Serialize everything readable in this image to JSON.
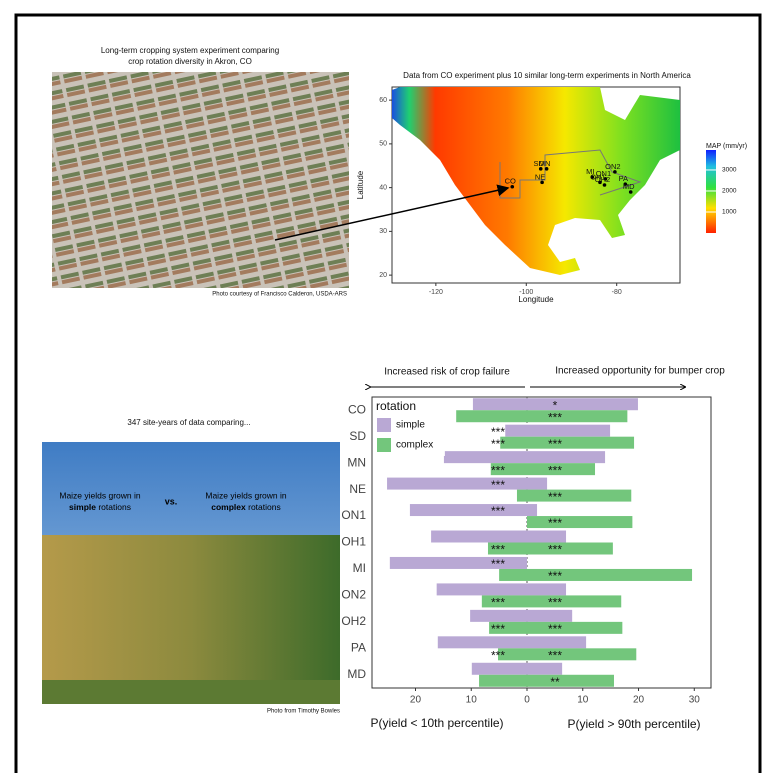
{
  "figure": {
    "top_caption": [
      "Long-term cropping system experiment comparing",
      "crop rotation diversity in Akron, CO"
    ],
    "top_credit": "Photo courtesy of Francisco Calderon, USDA-ARS",
    "map_caption": "Data from CO experiment plus 10 similar long-term experiments in North America",
    "bottom_caption": "347 site-years of data comparing...",
    "photo_left": [
      "Maize yields grown in",
      "simple",
      " rotations"
    ],
    "photo_vs": "vs.",
    "photo_right": [
      "Maize yields grown in",
      "complex",
      " rotations"
    ],
    "bottom_credit": "Photo from Timothy Bowles"
  },
  "chart_data": [
    {
      "type": "diverging_bar",
      "annotation_left": "Increased risk of crop failure",
      "annotation_right": "Increased opportunity for bumper crop",
      "xlabel_left": "P(yield < 10th percentile)",
      "xlabel_right": "P(yield > 90th percentile)",
      "legend_title": "rotation",
      "categories": [
        "CO",
        "SD",
        "MN",
        "NE",
        "ON1",
        "OH1",
        "MI",
        "ON2",
        "OH2",
        "PA",
        "MD"
      ],
      "series": [
        {
          "name": "simple",
          "color": "#b9a8d4",
          "lower": [
            -9.7,
            -3.9,
            -14.9,
            -25.1,
            -21,
            -17.2,
            -24.6,
            -16.2,
            -10.2,
            -16,
            -9.9
          ],
          "upper": [
            19.9,
            14.9,
            14,
            3.6,
            1.8,
            7,
            0,
            7,
            8.1,
            10.6,
            6.3
          ],
          "stars_left": [
            null,
            "***",
            null,
            "***",
            "***",
            null,
            "***",
            null,
            null,
            null,
            null
          ],
          "stars_right": [
            "*",
            null,
            null,
            null,
            null,
            null,
            null,
            null,
            null,
            null,
            null
          ]
        },
        {
          "name": "complex",
          "color": "#73c67c",
          "lower": [
            -12.7,
            -4.8,
            -6.5,
            -1.8,
            0,
            -7,
            -5,
            -8.1,
            -6.8,
            -5.2,
            -8.6
          ],
          "upper": [
            18,
            19.2,
            12.2,
            18.7,
            18.9,
            15.4,
            29.6,
            16.9,
            17.1,
            19.6,
            15.6
          ],
          "stars_left": [
            null,
            "***",
            "***",
            null,
            null,
            "***",
            null,
            "***",
            "***",
            "***",
            null
          ],
          "stars_right": [
            "***",
            "***",
            "***",
            "***",
            "***",
            "***",
            "***",
            "***",
            "***",
            "***",
            "**"
          ]
        }
      ],
      "xlim": [
        -27.8,
        33
      ],
      "xticks": [
        {
          "value": -20,
          "label": "20"
        },
        {
          "value": -10,
          "label": "10"
        },
        0,
        10,
        20,
        30
      ]
    },
    {
      "type": "map",
      "xlabel": "Longitude",
      "ylabel": "Latitude",
      "categories": [
        "CO",
        "SD",
        "MN",
        "NE",
        "ON2",
        "ON1",
        "MI",
        "OH1",
        "OH2",
        "PA",
        "MD"
      ],
      "x": [
        -103.1,
        -96.8,
        -95.5,
        -96.5,
        -80.4,
        -82.5,
        -85.4,
        -83.7,
        -82.7,
        -78.1,
        -76.9
      ],
      "y": [
        40.2,
        44.3,
        44.3,
        41.2,
        43.6,
        42.0,
        42.4,
        41.2,
        40.6,
        40.8,
        39.0
      ],
      "xlim": [
        -129.7,
        -66
      ],
      "ylim": [
        18.2,
        63
      ],
      "xticks": [
        -120,
        -100,
        -80
      ],
      "yticks": [
        20,
        30,
        40,
        50,
        60
      ],
      "colorbar_title": "MAP (mm/yr)",
      "colorbar_lim": [
        0,
        3950
      ],
      "colorbar_ticks": [
        1000,
        2000,
        3000
      ]
    }
  ]
}
